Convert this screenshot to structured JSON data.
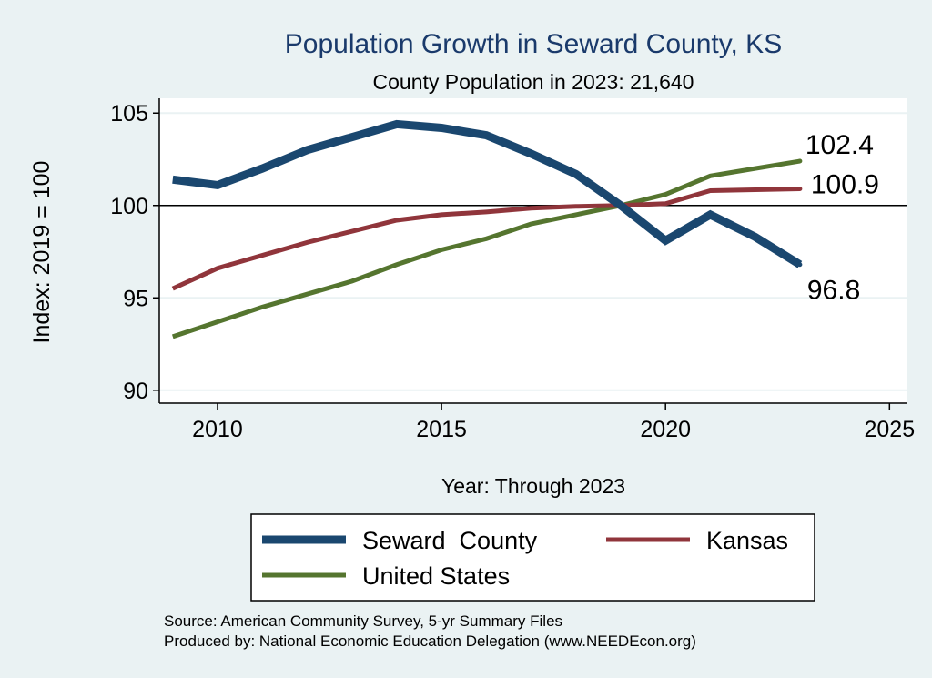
{
  "chart_data": {
    "type": "line",
    "title": "Population Growth in Seward County, KS",
    "subtitle": "County Population in 2023: 21,640",
    "xlabel": "Year: Through 2023",
    "ylabel": "Index: 2019 = 100",
    "xlim": [
      2008.7,
      2025.4
    ],
    "ylim": [
      89.3,
      105.8
    ],
    "xticks": [
      2010,
      2015,
      2020,
      2025
    ],
    "yticks": [
      90,
      95,
      100,
      105
    ],
    "reference_line": 100,
    "grid": true,
    "legend_position": "bottom",
    "x": [
      2009,
      2010,
      2011,
      2012,
      2013,
      2014,
      2015,
      2016,
      2017,
      2018,
      2019,
      2020,
      2021,
      2022,
      2023
    ],
    "series": [
      {
        "name": "Seward  County",
        "color": "#1a476f",
        "width": 9,
        "values": [
          101.4,
          101.1,
          102.0,
          103.0,
          103.7,
          104.4,
          104.2,
          103.8,
          102.8,
          101.7,
          100.0,
          98.1,
          99.5,
          98.3,
          96.8
        ],
        "end_label": "96.8"
      },
      {
        "name": "Kansas",
        "color": "#90353b",
        "width": 5,
        "values": [
          95.5,
          96.6,
          97.3,
          98.0,
          98.6,
          99.2,
          99.5,
          99.65,
          99.85,
          99.95,
          100.0,
          100.1,
          100.8,
          100.85,
          100.9
        ],
        "end_label": "100.9"
      },
      {
        "name": "United States",
        "color": "#55752f",
        "width": 5,
        "values": [
          92.9,
          93.7,
          94.5,
          95.2,
          95.9,
          96.8,
          97.6,
          98.2,
          99.0,
          99.5,
          100.0,
          100.6,
          101.6,
          102.0,
          102.4
        ],
        "end_label": "102.4"
      }
    ],
    "notes": [
      "Source: American Community Survey, 5-yr Summary Files",
      "Produced by: National Economic Education Delegation (www.NEEDEcon.org)"
    ]
  }
}
